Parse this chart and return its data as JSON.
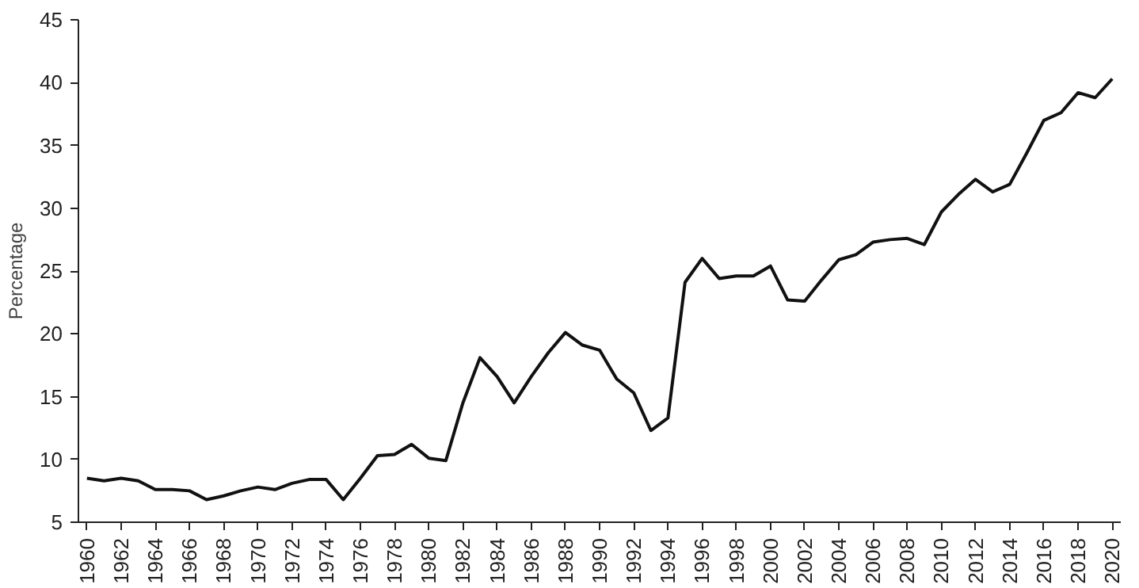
{
  "chart_data": {
    "type": "line",
    "ylabel": "Percentage",
    "x": [
      1960,
      1961,
      1962,
      1963,
      1964,
      1965,
      1966,
      1967,
      1968,
      1969,
      1970,
      1971,
      1972,
      1973,
      1974,
      1975,
      1976,
      1977,
      1978,
      1979,
      1980,
      1981,
      1982,
      1983,
      1984,
      1985,
      1986,
      1987,
      1988,
      1989,
      1990,
      1991,
      1992,
      1993,
      1994,
      1995,
      1996,
      1997,
      1998,
      1999,
      2000,
      2001,
      2002,
      2003,
      2004,
      2005,
      2006,
      2007,
      2008,
      2009,
      2010,
      2011,
      2012,
      2013,
      2014,
      2015,
      2016,
      2017,
      2018,
      2019,
      2020
    ],
    "series": [
      {
        "color": "#111111",
        "values": [
          8.5,
          8.3,
          8.5,
          8.3,
          7.6,
          7.6,
          7.5,
          6.8,
          7.1,
          7.5,
          7.8,
          7.6,
          8.1,
          8.4,
          8.4,
          6.8,
          8.5,
          10.3,
          10.4,
          11.2,
          10.1,
          9.9,
          14.5,
          18.1,
          16.6,
          14.5,
          16.6,
          18.5,
          20.1,
          19.1,
          18.7,
          16.4,
          15.3,
          12.3,
          13.3,
          24.1,
          26.0,
          24.4,
          24.6,
          24.6,
          25.4,
          22.7,
          22.6,
          24.3,
          25.9,
          26.3,
          27.3,
          27.5,
          27.6,
          27.1,
          29.7,
          31.1,
          32.3,
          31.3,
          31.9,
          34.4,
          37.0,
          37.6,
          39.2,
          38.8,
          40.3
        ]
      }
    ],
    "xlim": [
      1959.5,
      2020.5
    ],
    "xticks": [
      1960,
      1962,
      1964,
      1966,
      1968,
      1970,
      1972,
      1974,
      1976,
      1978,
      1980,
      1982,
      1984,
      1986,
      1988,
      1990,
      1992,
      1994,
      1996,
      1998,
      2000,
      2002,
      2004,
      2006,
      2008,
      2010,
      2012,
      2014,
      2016,
      2018,
      2020
    ],
    "ylim": [
      5,
      45
    ],
    "yticks": [
      5,
      10,
      15,
      20,
      25,
      30,
      35,
      40,
      45
    ],
    "grid": false,
    "marker": "none",
    "line_style": "solid"
  }
}
